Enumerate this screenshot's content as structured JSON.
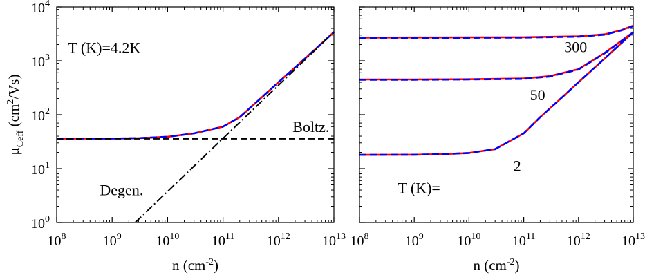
{
  "chart_data": [
    {
      "type": "line",
      "xscale": "log",
      "yscale": "log",
      "xlim": [
        100000000.0,
        10000000000000.0
      ],
      "ylim": [
        1,
        10000
      ],
      "xlabel": {
        "base": "n (cm",
        "sup": "-2",
        "tail": ")"
      },
      "ylabel": {
        "mu": "μ",
        "sub": "Ceff",
        "pre": " (cm",
        "sup": "2",
        "tail": "/Vs)"
      },
      "xticks": [
        {
          "base": "10",
          "exp": "8"
        },
        {
          "base": "10",
          "exp": "9"
        },
        {
          "base": "10",
          "exp": "10"
        },
        {
          "base": "10",
          "exp": "11"
        },
        {
          "base": "10",
          "exp": "12"
        },
        {
          "base": "10",
          "exp": "13"
        }
      ],
      "yticks": [
        {
          "base": "10",
          "exp": "0"
        },
        {
          "base": "10",
          "exp": "1"
        },
        {
          "base": "10",
          "exp": "2"
        },
        {
          "base": "10",
          "exp": "3"
        },
        {
          "base": "10",
          "exp": "4"
        }
      ],
      "annotations": [
        {
          "text": "T (K)=4.2K",
          "x": 160000000.0,
          "y": 1400
        },
        {
          "text": "Boltz.",
          "x": 1800000000000.0,
          "y": 48
        },
        {
          "text": "Degen.",
          "x": 600000000.0,
          "y": 3.2
        }
      ],
      "series": [
        {
          "style": "red-solid",
          "color": "#ff0000",
          "x": [
            100000000.0,
            1000000000.0,
            3000000000.0,
            10000000000.0,
            30000000000.0,
            100000000000.0,
            200000000000.0,
            500000000000.0,
            1000000000000.0,
            3000000000000.0,
            10000000000000.0
          ],
          "y": [
            36,
            36.2,
            36.8,
            39,
            45,
            60,
            90,
            210,
            400,
            1100,
            3400
          ]
        },
        {
          "style": "blue-dashed",
          "color": "#0000ff",
          "x": [
            100000000.0,
            1000000000.0,
            3000000000.0,
            10000000000.0,
            30000000000.0,
            100000000000.0,
            200000000000.0,
            500000000000.0,
            1000000000000.0,
            3000000000000.0,
            10000000000000.0
          ],
          "y": [
            36,
            36.2,
            36.8,
            39,
            45,
            60,
            90,
            210,
            400,
            1100,
            3400
          ]
        },
        {
          "style": "black-dashed",
          "color": "#000000",
          "x": [
            100000000.0,
            10000000000000.0
          ],
          "y": [
            36,
            36
          ]
        },
        {
          "style": "black-dashdot",
          "color": "#000000",
          "x": [
            2600000000.0,
            10000000000000.0
          ],
          "y": [
            1,
            3400
          ]
        }
      ]
    },
    {
      "type": "line",
      "xscale": "log",
      "yscale": "log",
      "xlim": [
        100000000.0,
        10000000000000.0
      ],
      "ylim": [
        1,
        10000
      ],
      "xlabel": {
        "base": "n (cm",
        "sup": "-2",
        "tail": ")"
      },
      "xticks": [
        {
          "base": "10",
          "exp": "8"
        },
        {
          "base": "10",
          "exp": "9"
        },
        {
          "base": "10",
          "exp": "10"
        },
        {
          "base": "10",
          "exp": "11"
        },
        {
          "base": "10",
          "exp": "12"
        },
        {
          "base": "10",
          "exp": "13"
        }
      ],
      "annotations": [
        {
          "text": "300",
          "x": 550000000000.0,
          "y": 1450
        },
        {
          "text": "50",
          "x": 130000000000.0,
          "y": 185
        },
        {
          "text": "2",
          "x": 65000000000.0,
          "y": 9
        },
        {
          "text": "T (K)=",
          "x": 500000000.0,
          "y": 3.5
        }
      ],
      "series": [
        {
          "temperature": "300",
          "color": "#ff0000",
          "style": "red-solid",
          "x": [
            100000000.0,
            1000000000.0,
            10000000000.0,
            100000000000.0,
            1000000000000.0,
            3000000000000.0,
            6000000000000.0,
            10000000000000.0
          ],
          "y": [
            2700,
            2710,
            2720,
            2740,
            2850,
            3100,
            3700,
            4500
          ]
        },
        {
          "temperature": "300",
          "color": "#0000ff",
          "style": "blue-dashed",
          "x": [
            100000000.0,
            1000000000.0,
            10000000000.0,
            100000000000.0,
            1000000000000.0,
            3000000000000.0,
            6000000000000.0,
            10000000000000.0
          ],
          "y": [
            2650,
            2660,
            2670,
            2700,
            2800,
            3050,
            3650,
            4400
          ]
        },
        {
          "temperature": "50",
          "color": "#ff0000",
          "style": "red-solid",
          "x": [
            100000000.0,
            1000000000.0,
            10000000000.0,
            100000000000.0,
            300000000000.0,
            1000000000000.0,
            3000000000000.0,
            10000000000000.0
          ],
          "y": [
            450,
            450,
            455,
            470,
            520,
            700,
            1400,
            3400
          ]
        },
        {
          "temperature": "50",
          "color": "#0000ff",
          "style": "blue-dashed",
          "x": [
            100000000.0,
            1000000000.0,
            10000000000.0,
            100000000000.0,
            300000000000.0,
            1000000000000.0,
            3000000000000.0,
            10000000000000.0
          ],
          "y": [
            445,
            445,
            450,
            462,
            510,
            690,
            1380,
            3350
          ]
        },
        {
          "temperature": "2",
          "color": "#ff0000",
          "style": "red-solid",
          "x": [
            100000000.0,
            1000000000.0,
            3000000000.0,
            10000000000.0,
            30000000000.0,
            100000000000.0,
            200000000000.0,
            500000000000.0,
            1000000000000.0,
            3000000000000.0,
            10000000000000.0
          ],
          "y": [
            18,
            18.1,
            18.5,
            19.5,
            23,
            45,
            90,
            210,
            400,
            1100,
            3400
          ]
        },
        {
          "temperature": "2",
          "color": "#0000ff",
          "style": "blue-dashed",
          "x": [
            100000000.0,
            1000000000.0,
            3000000000.0,
            10000000000.0,
            30000000000.0,
            100000000000.0,
            200000000000.0,
            500000000000.0,
            1000000000000.0,
            3000000000000.0,
            10000000000000.0
          ],
          "y": [
            18,
            18.1,
            18.5,
            19.5,
            23,
            45,
            90,
            210,
            400,
            1100,
            3400
          ]
        }
      ]
    }
  ]
}
